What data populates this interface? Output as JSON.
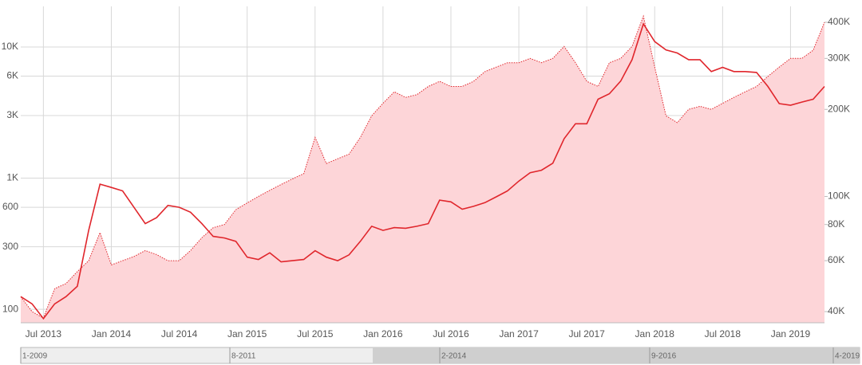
{
  "chart_data": {
    "type": "line",
    "x": [
      "2013-05",
      "2013-06",
      "2013-07",
      "2013-08",
      "2013-09",
      "2013-10",
      "2013-11",
      "2013-12",
      "2014-01",
      "2014-02",
      "2014-03",
      "2014-04",
      "2014-05",
      "2014-06",
      "2014-07",
      "2014-08",
      "2014-09",
      "2014-10",
      "2014-11",
      "2014-12",
      "2015-01",
      "2015-02",
      "2015-03",
      "2015-04",
      "2015-05",
      "2015-06",
      "2015-07",
      "2015-08",
      "2015-09",
      "2015-10",
      "2015-11",
      "2015-12",
      "2016-01",
      "2016-02",
      "2016-03",
      "2016-04",
      "2016-05",
      "2016-06",
      "2016-07",
      "2016-08",
      "2016-09",
      "2016-10",
      "2016-11",
      "2016-12",
      "2017-01",
      "2017-02",
      "2017-03",
      "2017-04",
      "2017-05",
      "2017-06",
      "2017-07",
      "2017-08",
      "2017-09",
      "2017-10",
      "2017-11",
      "2017-12",
      "2018-01",
      "2018-02",
      "2018-03",
      "2018-04",
      "2018-05",
      "2018-06",
      "2018-07",
      "2018-08",
      "2018-09",
      "2018-10",
      "2018-11",
      "2018-12",
      "2019-01",
      "2019-02",
      "2019-03",
      "2019-04"
    ],
    "series": [
      {
        "color": "#e0262c",
        "style": "solid",
        "values": [
          125,
          110,
          85,
          110,
          125,
          150,
          400,
          900,
          850,
          800,
          600,
          450,
          500,
          620,
          600,
          550,
          450,
          360,
          350,
          330,
          250,
          240,
          270,
          230,
          235,
          240,
          280,
          250,
          235,
          260,
          330,
          430,
          400,
          420,
          415,
          430,
          450,
          680,
          660,
          580,
          610,
          650,
          720,
          800,
          950,
          1100,
          1150,
          1300,
          2000,
          2600,
          2600,
          4000,
          4400,
          5500,
          8000,
          15000,
          11000,
          9500,
          9000,
          8000,
          8000,
          6500,
          7000,
          6500,
          6500,
          6400,
          5000,
          3700,
          3600,
          3800,
          4000,
          5000
        ]
      },
      {
        "color": "#e0262c",
        "style": "dotted",
        "fill": "#fdd5d8",
        "axis": "y2",
        "values": [
          45000,
          40000,
          38000,
          48000,
          50000,
          55000,
          60000,
          75000,
          58000,
          60000,
          62000,
          65000,
          63000,
          60000,
          60000,
          65000,
          72000,
          78000,
          80000,
          90000,
          95000,
          100000,
          105000,
          110000,
          115000,
          120000,
          160000,
          130000,
          135000,
          140000,
          160000,
          190000,
          210000,
          230000,
          220000,
          225000,
          240000,
          250000,
          240000,
          240000,
          250000,
          270000,
          280000,
          290000,
          290000,
          300000,
          290000,
          300000,
          330000,
          290000,
          250000,
          240000,
          290000,
          300000,
          330000,
          420000,
          280000,
          190000,
          180000,
          200000,
          205000,
          200000,
          210000,
          220000,
          230000,
          240000,
          260000,
          280000,
          300000,
          300000,
          320000,
          400000
        ]
      }
    ],
    "xlim": [
      "2013-05",
      "2019-04"
    ],
    "xticks": [
      {
        "value": "2013-07",
        "label": "Jul 2013"
      },
      {
        "value": "2014-01",
        "label": "Jan 2014"
      },
      {
        "value": "2014-07",
        "label": "Jul 2014"
      },
      {
        "value": "2015-01",
        "label": "Jan 2015"
      },
      {
        "value": "2015-07",
        "label": "Jul 2015"
      },
      {
        "value": "2016-01",
        "label": "Jan 2016"
      },
      {
        "value": "2016-07",
        "label": "Jul 2016"
      },
      {
        "value": "2017-01",
        "label": "Jan 2017"
      },
      {
        "value": "2017-07",
        "label": "Jul 2017"
      },
      {
        "value": "2018-01",
        "label": "Jan 2018"
      },
      {
        "value": "2018-07",
        "label": "Jul 2018"
      },
      {
        "value": "2019-01",
        "label": "Jan 2019"
      }
    ],
    "ylim": [
      79,
      20400
    ],
    "log_y": true,
    "yticks": [
      100,
      300,
      600,
      {
        "value": 1000,
        "label": "1K"
      },
      {
        "value": 3000,
        "label": "3K"
      },
      {
        "value": 6000,
        "label": "6K"
      },
      {
        "value": 10000,
        "label": "10K"
      }
    ],
    "y2lim": [
      36600,
      454000
    ],
    "log_y2": true,
    "y2ticks": [
      {
        "value": 40000,
        "label": "40K"
      },
      {
        "value": 60000,
        "label": "60K"
      },
      {
        "value": 80000,
        "label": "80K"
      },
      {
        "value": 100000,
        "label": "100K"
      },
      {
        "value": 200000,
        "label": "200K"
      },
      {
        "value": 300000,
        "label": "300K"
      },
      {
        "value": 400000,
        "label": "400K"
      }
    ],
    "grid": true,
    "navigator": {
      "labels": [
        "1-2009",
        "8-2011",
        "2-2014",
        "9-2016",
        "4-2019"
      ]
    }
  }
}
